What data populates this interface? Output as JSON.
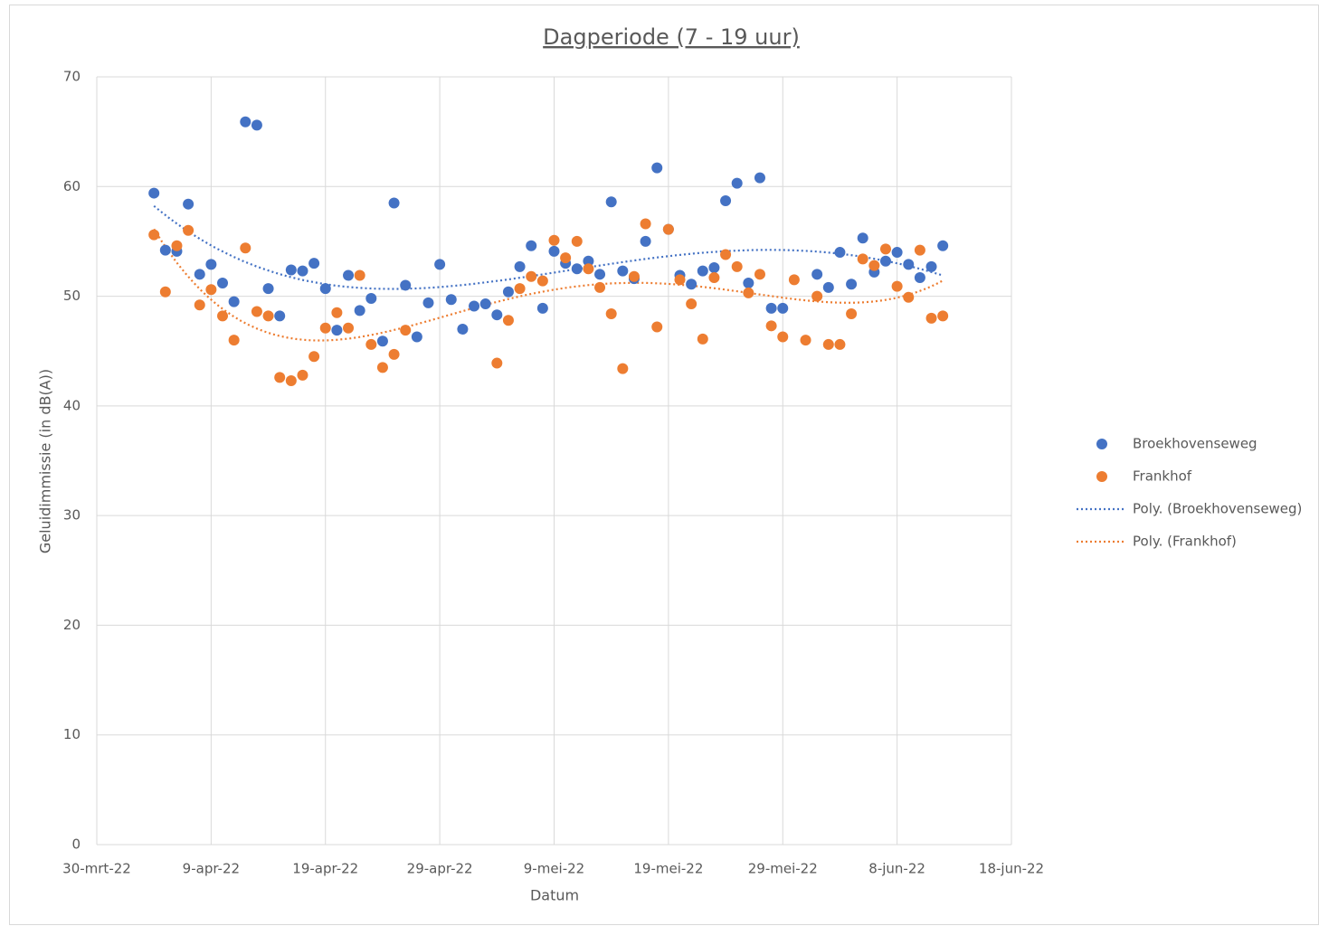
{
  "chart_data": {
    "type": "scatter",
    "title": "Dagperiode (7 - 19 uur)",
    "x_label": "Datum",
    "y_label": "Geluidimmissie (in dB(A))",
    "x": [
      "2022-04-04",
      "2022-04-05",
      "2022-04-06",
      "2022-04-07",
      "2022-04-08",
      "2022-04-09",
      "2022-04-10",
      "2022-04-11",
      "2022-04-12",
      "2022-04-13",
      "2022-04-14",
      "2022-04-15",
      "2022-04-16",
      "2022-04-17",
      "2022-04-18",
      "2022-04-19",
      "2022-04-20",
      "2022-04-21",
      "2022-04-22",
      "2022-04-23",
      "2022-04-24",
      "2022-04-25",
      "2022-04-26",
      "2022-04-27",
      "2022-04-28",
      "2022-04-29",
      "2022-04-30",
      "2022-05-01",
      "2022-05-02",
      "2022-05-03",
      "2022-05-04",
      "2022-05-05",
      "2022-05-06",
      "2022-05-07",
      "2022-05-08",
      "2022-05-09",
      "2022-05-10",
      "2022-05-11",
      "2022-05-12",
      "2022-05-13",
      "2022-05-14",
      "2022-05-15",
      "2022-05-16",
      "2022-05-17",
      "2022-05-18",
      "2022-05-19",
      "2022-05-20",
      "2022-05-21",
      "2022-05-22",
      "2022-05-23",
      "2022-05-24",
      "2022-05-25",
      "2022-05-26",
      "2022-05-27",
      "2022-05-28",
      "2022-05-29",
      "2022-05-30",
      "2022-05-31",
      "2022-06-01",
      "2022-06-02",
      "2022-06-03",
      "2022-06-04",
      "2022-06-05",
      "2022-06-06",
      "2022-06-07",
      "2022-06-08",
      "2022-06-09",
      "2022-06-10",
      "2022-06-11",
      "2022-06-12"
    ],
    "series": [
      {
        "name": "Broekhovenseweg",
        "color": "#4472c4",
        "values": [
          59.4,
          54.2,
          54.1,
          58.4,
          52.0,
          52.9,
          51.2,
          49.5,
          65.9,
          65.6,
          50.7,
          48.2,
          52.4,
          52.3,
          53.0,
          50.7,
          46.9,
          51.9,
          48.7,
          49.8,
          45.9,
          58.5,
          51.0,
          46.3,
          49.4,
          52.9,
          49.7,
          47.0,
          49.1,
          49.3,
          48.3,
          50.4,
          52.7,
          54.6,
          48.9,
          54.1,
          53.0,
          52.5,
          53.2,
          52.0,
          58.6,
          52.3,
          51.6,
          55.0,
          61.7,
          56.1,
          51.9,
          51.1,
          52.3,
          52.6,
          58.7,
          60.3,
          51.2,
          60.8,
          48.9,
          48.9,
          null,
          null,
          52.0,
          50.8,
          54.0,
          51.1,
          55.3,
          52.2,
          53.2,
          54.0,
          52.9,
          51.7,
          52.7,
          54.6
        ]
      },
      {
        "name": "Frankhof",
        "color": "#ed7d31",
        "values": [
          55.6,
          50.4,
          54.6,
          56.0,
          49.2,
          50.6,
          48.2,
          46.0,
          54.4,
          48.6,
          48.2,
          42.6,
          42.3,
          42.8,
          44.5,
          47.1,
          48.5,
          47.1,
          51.9,
          45.6,
          43.5,
          44.7,
          46.9,
          null,
          null,
          null,
          null,
          null,
          null,
          null,
          43.9,
          47.8,
          50.7,
          51.8,
          51.4,
          55.1,
          53.5,
          55.0,
          52.5,
          50.8,
          48.4,
          43.4,
          51.8,
          56.6,
          47.2,
          56.1,
          51.5,
          49.3,
          46.1,
          51.7,
          53.8,
          52.7,
          50.3,
          52.0,
          47.3,
          46.3,
          51.5,
          46.0,
          50.0,
          45.6,
          45.6,
          48.4,
          53.4,
          52.8,
          54.3,
          50.9,
          49.9,
          54.2,
          48.0,
          48.2
        ]
      }
    ],
    "trendlines": [
      {
        "label": "Poly. (Broekhovenseweg)",
        "color": "#4472c4"
      },
      {
        "label": "Poly. (Frankhof)",
        "color": "#ed7d31"
      }
    ],
    "xlim": [
      "2022-03-30",
      "2022-06-18"
    ],
    "xticks": [
      {
        "value": "2022-03-30",
        "label": "30-mrt-22"
      },
      {
        "value": "2022-04-09",
        "label": "9-apr-22"
      },
      {
        "value": "2022-04-19",
        "label": "19-apr-22"
      },
      {
        "value": "2022-04-29",
        "label": "29-apr-22"
      },
      {
        "value": "2022-05-09",
        "label": "9-mei-22"
      },
      {
        "value": "2022-05-19",
        "label": "19-mei-22"
      },
      {
        "value": "2022-05-29",
        "label": "29-mei-22"
      },
      {
        "value": "2022-06-08",
        "label": "8-jun-22"
      },
      {
        "value": "2022-06-18",
        "label": "18-jun-22"
      }
    ],
    "ylim": [
      0,
      70
    ],
    "yticks": [
      0,
      10,
      20,
      30,
      40,
      50,
      60,
      70
    ],
    "grid": true,
    "legend": "right"
  }
}
